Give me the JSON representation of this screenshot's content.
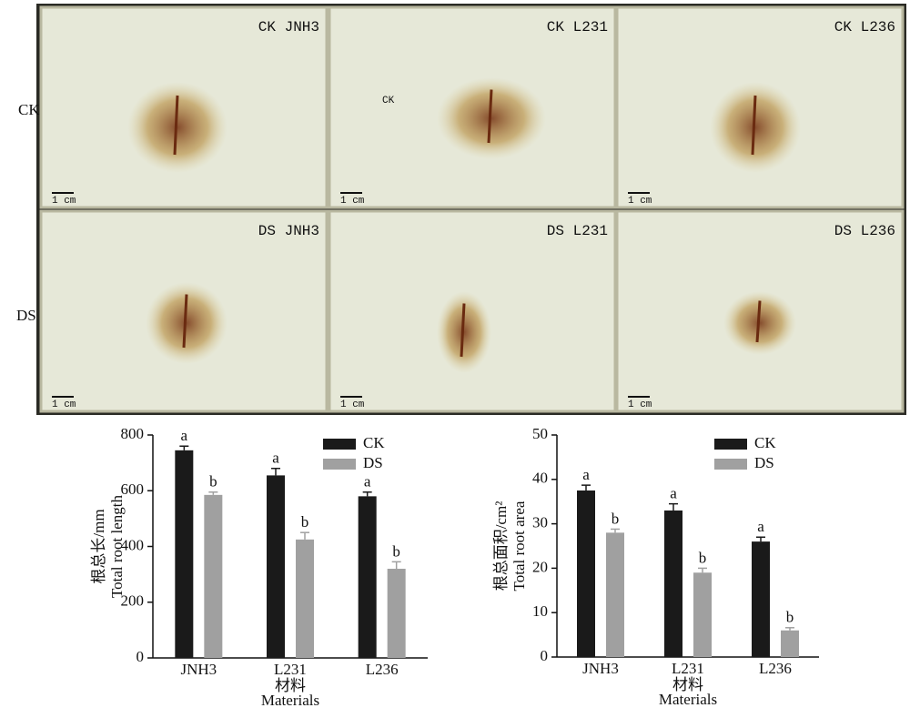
{
  "photos": {
    "row_labels": [
      "CK",
      "DS"
    ],
    "panels": [
      {
        "label": "CK JNH3"
      },
      {
        "label": "CK L231"
      },
      {
        "label": "CK L236"
      },
      {
        "label": "DS JNH3"
      },
      {
        "label": "DS L231"
      },
      {
        "label": "DS L236"
      }
    ],
    "scale_label": "1 cm",
    "annotation": "CK"
  },
  "chart_data": [
    {
      "type": "bar",
      "ylabel": [
        "根总长/mm",
        "Total root length"
      ],
      "xlabel": [
        "材料",
        "Materials"
      ],
      "categories": [
        "JNH3",
        "L231",
        "L236"
      ],
      "series": [
        {
          "name": "CK",
          "color": "#1a1a1a",
          "values": [
            745,
            655,
            580
          ],
          "errors": [
            15,
            25,
            15
          ],
          "letters": [
            "a",
            "a",
            "a"
          ]
        },
        {
          "name": "DS",
          "color": "#a0a0a0",
          "values": [
            585,
            425,
            320
          ],
          "errors": [
            10,
            25,
            25
          ],
          "letters": [
            "b",
            "b",
            "b"
          ]
        }
      ],
      "ylim": [
        0,
        800
      ],
      "yticks": [
        0,
        200,
        400,
        600,
        800
      ],
      "legend": "upper right"
    },
    {
      "type": "bar",
      "ylabel": [
        "根总面积/cm²",
        "Total root area"
      ],
      "xlabel": [
        "材料",
        "Materials"
      ],
      "categories": [
        "JNH3",
        "L231",
        "L236"
      ],
      "series": [
        {
          "name": "CK",
          "color": "#1a1a1a",
          "values": [
            37.5,
            33,
            26
          ],
          "errors": [
            1.2,
            1.5,
            1
          ],
          "letters": [
            "a",
            "a",
            "a"
          ]
        },
        {
          "name": "DS",
          "color": "#a0a0a0",
          "values": [
            28,
            19,
            6
          ],
          "errors": [
            0.8,
            1,
            0.6
          ],
          "letters": [
            "b",
            "b",
            "b"
          ]
        }
      ],
      "ylim": [
        0,
        50
      ],
      "yticks": [
        0,
        10,
        20,
        30,
        40,
        50
      ],
      "legend": "upper right"
    }
  ]
}
